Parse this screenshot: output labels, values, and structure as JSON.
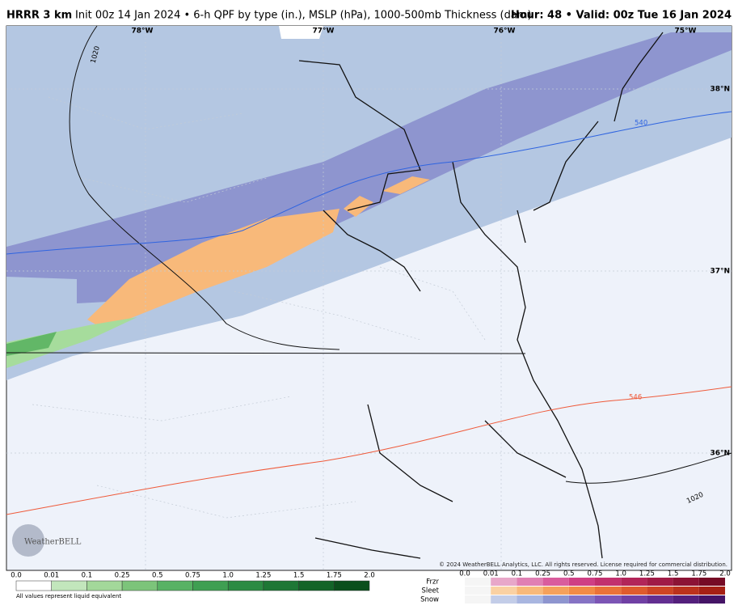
{
  "header": {
    "model": "HRRR 3 km",
    "description": "Init 00z 14 Jan 2024 • 6-h QPF by type (in.), MSLP (hPa), 1000-500mb Thickness (dam)",
    "valid": "Hour: 48 • Valid: 00z Tue 16 Jan 2024"
  },
  "map": {
    "longitudes": [
      "78°W",
      "77°W",
      "76°W",
      "75°W"
    ],
    "latitudes": [
      "38°N",
      "37°N",
      "36°N"
    ],
    "contour_labels": [
      "1020",
      "540",
      "546",
      "1020"
    ],
    "logo": "WeatherBELL",
    "copyright": "© 2024 WeatherBELL Analytics, LLC. All rights reserved. License required for commercial distribution."
  },
  "legend": {
    "rain_ticks": [
      "0.0",
      "0.01",
      "0.1",
      "0.25",
      "0.5",
      "0.75",
      "1.0",
      "1.25",
      "1.5",
      "1.75",
      "2.0"
    ],
    "note": "All values represent liquid equivalent",
    "types": [
      "Frzr",
      "Sleet",
      "Snow"
    ],
    "type_ticks": [
      "0.0",
      "0.01",
      "0.1",
      "0.25",
      "0.5",
      "0.75",
      "1.0",
      "1.25",
      "1.5",
      "1.75",
      "2.0"
    ]
  }
}
